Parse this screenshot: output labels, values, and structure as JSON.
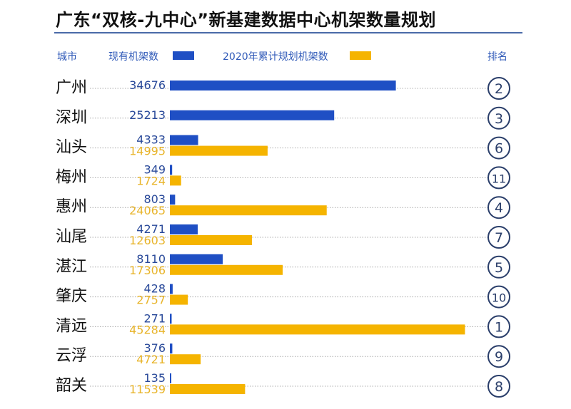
{
  "chart_data": {
    "type": "bar",
    "orientation": "horizontal",
    "title": "广东“双核-九中心”新基建数据中心机架数量规划",
    "category_header": "城市",
    "rank_header": "排名",
    "categories": [
      "广州",
      "深圳",
      "汕头",
      "梅州",
      "惠州",
      "汕尾",
      "湛江",
      "肇庆",
      "清远",
      "云浮",
      "韶关"
    ],
    "series": [
      {
        "name": "现有机架数",
        "color": "#1f4fc4",
        "label_color": "#2a4a9a",
        "values": [
          34676,
          25213,
          4333,
          349,
          803,
          4271,
          8110,
          428,
          271,
          376,
          135
        ]
      },
      {
        "name": "2020年累计规划机架数",
        "color": "#f5b400",
        "label_color": "#e8b42a",
        "values": [
          null,
          null,
          14995,
          1724,
          24065,
          12603,
          17306,
          2757,
          45284,
          4721,
          11539
        ]
      }
    ],
    "ranks": [
      2,
      3,
      6,
      11,
      4,
      7,
      5,
      10,
      1,
      9,
      8
    ],
    "legend_placement": "top",
    "grid": false
  }
}
